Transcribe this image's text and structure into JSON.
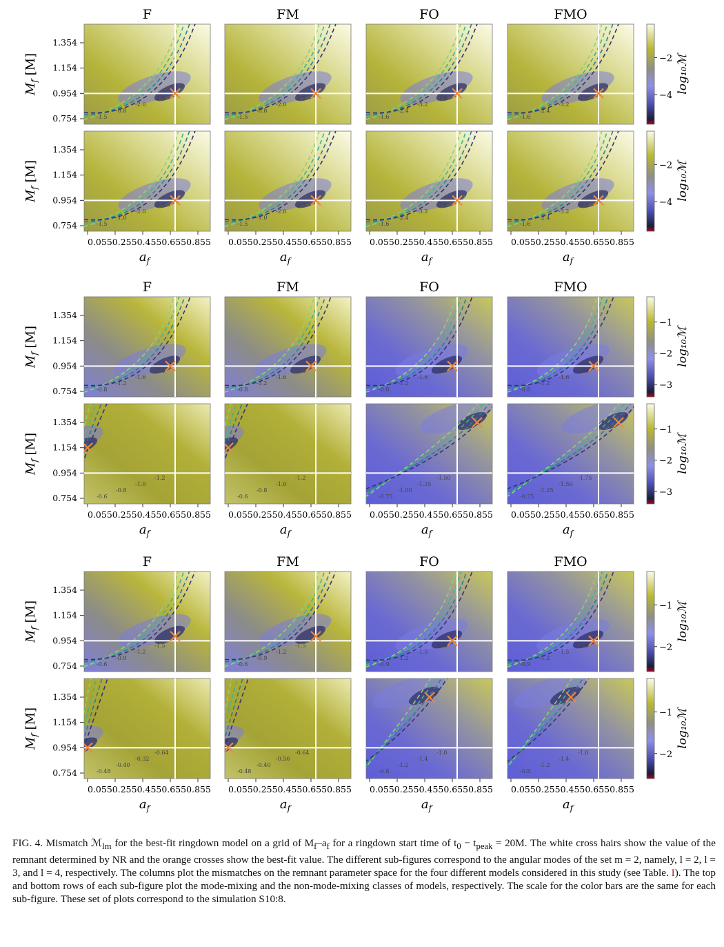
{
  "figure": {
    "columns": [
      "F",
      "FM",
      "FO",
      "FMO"
    ],
    "ytick_labels": [
      "1.354",
      "1.154",
      "0.954",
      "0.754"
    ],
    "xtick_labels": [
      "0.055",
      "0.255",
      "0.455",
      "0.655",
      "0.855"
    ],
    "ylabel": "M_f [M]",
    "xlabel": "a_f",
    "colorbar_label": "log₁₀ℳ",
    "nr_value": {
      "a_f": 0.69,
      "M_f": 0.954
    },
    "subfigures": [
      {
        "mode": "l=2",
        "colorbar_ticks": [
          "−2",
          "−4"
        ],
        "colorbar_range": [
          -5.6,
          -0.2
        ],
        "rows": [
          {
            "class": "mode-mixing",
            "contours": [
              [
                "-1.5",
                "-0.8",
                "-2.0",
                "-2.5"
              ],
              [
                "-1.5",
                "-0.8",
                "-2.0",
                "-2.5"
              ],
              [
                "-1.6",
                "-2.4",
                "-3.2",
                "-1.6"
              ],
              [
                "-1.6",
                "-2.4",
                "-3.2",
                "-1.6"
              ]
            ],
            "best_fit": [
              [
                0.69,
                0.954
              ],
              [
                0.69,
                0.954
              ],
              [
                0.69,
                0.954
              ],
              [
                0.69,
                0.954
              ]
            ]
          },
          {
            "class": "non-mode-mixing",
            "contours": [
              [
                "-1.5",
                "-1.0",
                "-2.0",
                "-2.5"
              ],
              [
                "-1.5",
                "-1.0",
                "-2.0",
                "-2.5"
              ],
              [
                "-1.6",
                "-2.4",
                "-3.2",
                "-0.8"
              ],
              [
                "-1.6",
                "-2.4",
                "-3.2",
                "-0.8"
              ]
            ],
            "best_fit": [
              [
                0.69,
                0.954
              ],
              [
                0.69,
                0.954
              ],
              [
                0.69,
                0.954
              ],
              [
                0.69,
                0.954
              ]
            ]
          }
        ]
      },
      {
        "mode": "l=3",
        "colorbar_ticks": [
          "−1",
          "−2",
          "−3"
        ],
        "colorbar_range": [
          -3.4,
          -0.2
        ],
        "rows": [
          {
            "class": "mode-mixing",
            "contours": [
              [
                "-0.8",
                "-1.2",
                "-1.6",
                "-2.0"
              ],
              [
                "-0.8",
                "-1.2",
                "-1.6",
                "-2.0"
              ],
              [
                "-0.8",
                "-1.2",
                "-1.6",
                "-2.0"
              ],
              [
                "-0.8",
                "-1.2",
                "-1.6",
                "-2.0"
              ]
            ],
            "best_fit": [
              [
                0.655,
                0.954
              ],
              [
                0.655,
                0.954
              ],
              [
                0.655,
                0.954
              ],
              [
                0.655,
                0.954
              ]
            ]
          },
          {
            "class": "non-mode-mixing",
            "contours": [
              [
                "-0.6",
                "-0.8",
                "-1.0",
                "-1.2"
              ],
              [
                "-0.6",
                "-0.8",
                "-1.0",
                "-1.2"
              ],
              [
                "-0.75",
                "-1.00",
                "-1.25",
                "-1.50"
              ],
              [
                "-0.75",
                "-1.25",
                "-1.50",
                "-1.75"
              ]
            ],
            "best_fit": [
              [
                0.055,
                1.154
              ],
              [
                0.055,
                1.154
              ],
              [
                0.835,
                1.354
              ],
              [
                0.835,
                1.354
              ]
            ]
          }
        ]
      },
      {
        "mode": "l=4",
        "colorbar_ticks": [
          "−1",
          "−2"
        ],
        "colorbar_range": [
          -2.6,
          -0.2
        ],
        "rows": [
          {
            "class": "mode-mixing",
            "contours": [
              [
                "-0.6",
                "-0.9",
                "-1.2",
                "-1.5"
              ],
              [
                "-0.6",
                "-0.9",
                "-1.2",
                "-1.5"
              ],
              [
                "-0.9",
                "-1.2",
                "-1.5",
                "-0.6"
              ],
              [
                "-0.9",
                "-1.2",
                "-1.5",
                "-0.6"
              ]
            ],
            "best_fit": [
              [
                0.69,
                0.99
              ],
              [
                0.69,
                0.99
              ],
              [
                0.655,
                0.954
              ],
              [
                0.655,
                0.954
              ]
            ]
          },
          {
            "class": "non-mode-mixing",
            "contours": [
              [
                "-0.48",
                "-0.40",
                "-0.32",
                "-0.64"
              ],
              [
                "-0.48",
                "-0.40",
                "-0.56",
                "-0.64"
              ],
              [
                "-0.8",
                "-1.2",
                "-1.4",
                "-1.0"
              ],
              [
                "-0.8",
                "-1.2",
                "-1.4",
                "-1.0"
              ]
            ],
            "best_fit": [
              [
                0.055,
                0.954
              ],
              [
                0.055,
                0.954
              ],
              [
                0.49,
                1.354
              ],
              [
                0.49,
                1.354
              ]
            ]
          }
        ]
      }
    ]
  },
  "caption": {
    "p1": "FIG. 4. Mismatch ℳ",
    "p1_sub": "lm",
    "p2": " for the best-fit ringdown model on a grid of M",
    "p2_sub": "f",
    "p3": "–a",
    "p3_sub": "f",
    "p4": " for a ringdown start time of t",
    "p4_sub": "0",
    "p5": " − t",
    "p5_sub": "peak",
    "p6": " = 20M. The white cross hairs show the value of the remnant determined by NR and the orange crosses show the best-fit value. The different sub-figures correspond to the angular modes of the set m = 2, namely, l = 2, l = 3, and l = 4, respectively. The columns plot the mismatches on the remnant parameter space for the four different models considered in this study (see Table. ",
    "ref": "I",
    "p7": "). The top and bottom rows of each sub-figure plot the mode-mixing and the non-mode-mixing classes of models, respectively. The scale for the color bars are the same for each sub-figure. These set of plots correspond to the simulation S10:8."
  }
}
